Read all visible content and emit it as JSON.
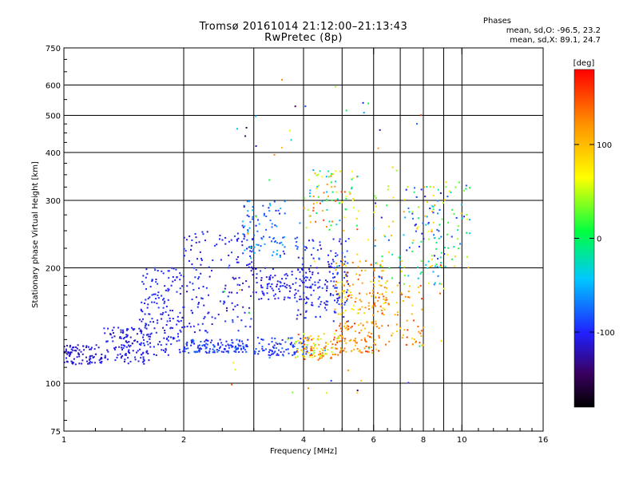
{
  "title_line1": "Tromsø 20161014 21:12:00–21:13:43",
  "title_line2": "RwPretec (8p)",
  "phases": {
    "title": "Phases",
    "o_line": "mean, sd,O: -96.5, 23.2",
    "x_line": "mean, sd,X:  89.1, 24.7"
  },
  "colorbar": {
    "unit": "[deg]",
    "ticks": [
      {
        "value": 100,
        "label": "100"
      },
      {
        "value": 0,
        "label": "0"
      },
      {
        "value": -100,
        "label": "-100"
      }
    ],
    "min": -180,
    "max": 180
  },
  "chart_data": {
    "type": "scatter",
    "xlabel": "Frequency [MHz]",
    "ylabel": "Stationary phase Virtual Height [km]",
    "xscale": "log",
    "yscale": "log",
    "xlim": [
      1,
      16
    ],
    "ylim": [
      75,
      750
    ],
    "xticks": [
      {
        "value": 1,
        "label": "1"
      },
      {
        "value": 2,
        "label": "2"
      },
      {
        "value": 4,
        "label": "4"
      },
      {
        "value": 6,
        "label": "6"
      },
      {
        "value": 8,
        "label": "8"
      },
      {
        "value": 10,
        "label": "10"
      },
      {
        "value": 16,
        "label": "16"
      }
    ],
    "xgrid": [
      2,
      3,
      4,
      5,
      6,
      7,
      8,
      9,
      10
    ],
    "yticks": [
      {
        "value": 75,
        "label": "75"
      },
      {
        "value": 100,
        "label": "100"
      },
      {
        "value": 200,
        "label": "200"
      },
      {
        "value": 300,
        "label": "300"
      },
      {
        "value": 400,
        "label": "400"
      },
      {
        "value": 500,
        "label": "500"
      },
      {
        "value": 600,
        "label": "600"
      },
      {
        "value": 750,
        "label": "750"
      }
    ],
    "ygrid": [
      100,
      200,
      300,
      400,
      500,
      600
    ],
    "grid": true,
    "color_by": "phase [deg]",
    "clusters": [
      {
        "f": [
          1.0,
          1.25
        ],
        "h": [
          112,
          126
        ],
        "phase": [
          -125,
          -100
        ],
        "n": 90
      },
      {
        "f": [
          1.25,
          1.65
        ],
        "h": [
          112,
          140
        ],
        "phase": [
          -120,
          -95
        ],
        "n": 120
      },
      {
        "f": [
          1.55,
          2.0
        ],
        "h": [
          118,
          200
        ],
        "phase": [
          -115,
          -90
        ],
        "n": 170
      },
      {
        "f": [
          2.0,
          2.9
        ],
        "h": [
          120,
          130
        ],
        "phase": [
          -110,
          -75
        ],
        "n": 130
      },
      {
        "f": [
          2.0,
          3.0
        ],
        "h": [
          135,
          250
        ],
        "phase": [
          -120,
          -90
        ],
        "n": 160
      },
      {
        "f": [
          2.8,
          3.6
        ],
        "h": [
          210,
          300
        ],
        "phase": [
          -110,
          -40
        ],
        "n": 90
      },
      {
        "f": [
          3.0,
          4.2
        ],
        "h": [
          118,
          132
        ],
        "phase": [
          -110,
          -70
        ],
        "n": 90
      },
      {
        "f": [
          3.0,
          4.2
        ],
        "h": [
          165,
          200
        ],
        "phase": [
          -120,
          -90
        ],
        "n": 100
      },
      {
        "f": [
          3.8,
          5.0
        ],
        "h": [
          115,
          135
        ],
        "phase": [
          30,
          160
        ],
        "n": 110
      },
      {
        "f": [
          3.8,
          5.2
        ],
        "h": [
          145,
          240
        ],
        "phase": [
          -120,
          -80
        ],
        "n": 160
      },
      {
        "f": [
          4.0,
          5.5
        ],
        "h": [
          250,
          360
        ],
        "phase": [
          -60,
          160
        ],
        "n": 90
      },
      {
        "f": [
          4.8,
          6.2
        ],
        "h": [
          120,
          145
        ],
        "phase": [
          90,
          160
        ],
        "n": 90
      },
      {
        "f": [
          4.8,
          6.5
        ],
        "h": [
          150,
          210
        ],
        "phase": [
          60,
          150
        ],
        "n": 110
      },
      {
        "f": [
          6.0,
          8.0
        ],
        "h": [
          125,
          180
        ],
        "phase": [
          80,
          160
        ],
        "n": 70
      },
      {
        "f": [
          6.0,
          9.0
        ],
        "h": [
          180,
          330
        ],
        "phase": [
          -120,
          130
        ],
        "n": 110
      },
      {
        "f": [
          8.0,
          10.5
        ],
        "h": [
          200,
          340
        ],
        "phase": [
          -110,
          110
        ],
        "n": 70
      },
      {
        "f": [
          2.5,
          9.5
        ],
        "h": [
          80,
          620
        ],
        "phase": [
          -150,
          170
        ],
        "n": 70
      }
    ]
  }
}
